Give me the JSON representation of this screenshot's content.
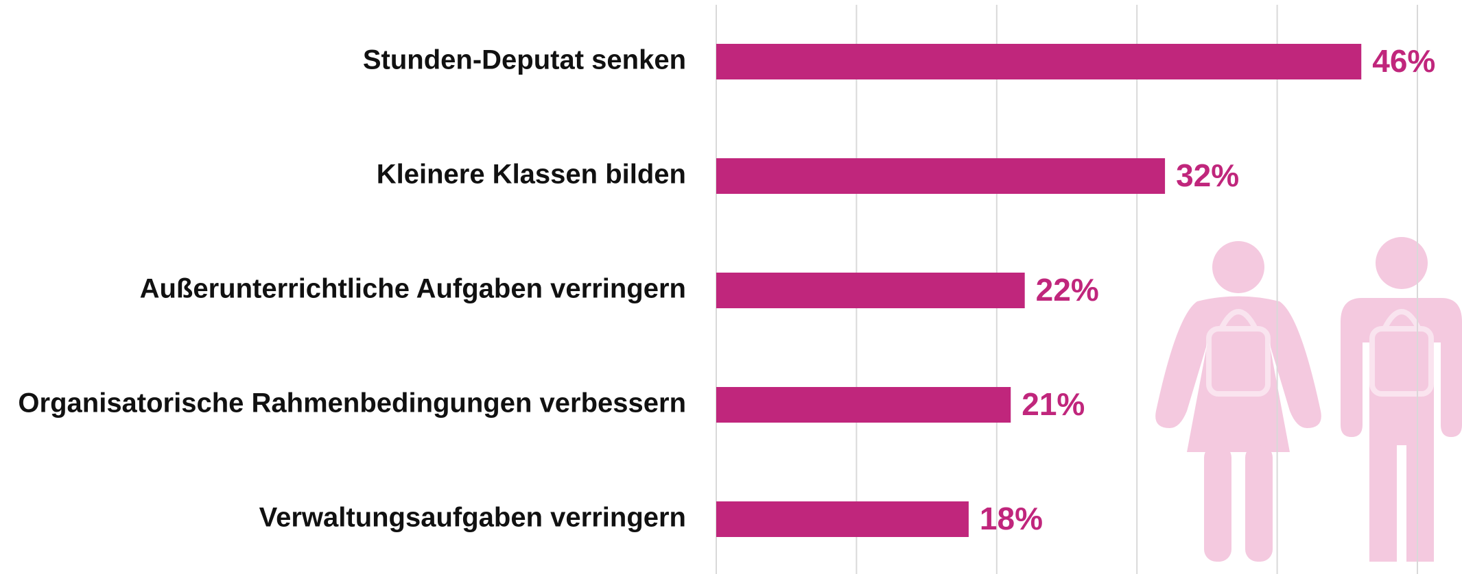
{
  "chart_data": {
    "type": "bar",
    "orientation": "horizontal",
    "categories": [
      "Stunden-Deputat senken",
      "Kleinere Klassen bilden",
      "Außerunterrichtliche Aufgaben verringern",
      "Organisatorische Rahmenbedingungen verbessern",
      "Verwaltungsaufgaben verringern"
    ],
    "values": [
      46,
      32,
      22,
      21,
      18
    ],
    "value_labels": [
      "46%",
      "32%",
      "22%",
      "21%",
      "18%"
    ],
    "color": "#c0267c",
    "xlim": [
      0,
      50
    ],
    "xticks": [
      0,
      10,
      20,
      30,
      40,
      50
    ],
    "grid": true
  }
}
